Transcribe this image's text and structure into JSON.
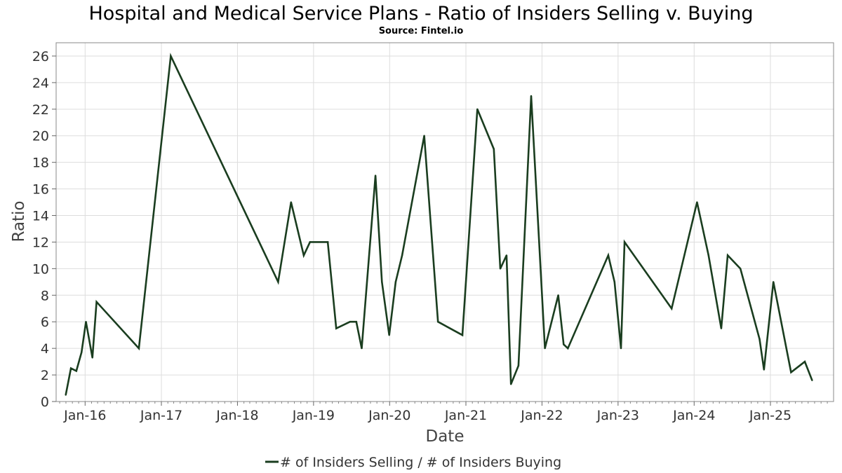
{
  "chart_data": {
    "type": "line",
    "title": "Hospital and Medical Service Plans - Ratio of Insiders Selling v. Buying",
    "subtitle": "Source: Fintel.io",
    "xlabel": "Date",
    "ylabel": "Ratio",
    "ylim": [
      0,
      27
    ],
    "xlim": [
      "2015-08-15",
      "2025-10-31"
    ],
    "yticks": [
      0,
      2,
      4,
      6,
      8,
      10,
      12,
      14,
      16,
      18,
      20,
      22,
      24,
      26
    ],
    "xticks": [
      {
        "label": "Jan-16",
        "date": "2016-01-01"
      },
      {
        "label": "Jan-17",
        "date": "2017-01-01"
      },
      {
        "label": "Jan-18",
        "date": "2018-01-01"
      },
      {
        "label": "Jan-19",
        "date": "2019-01-01"
      },
      {
        "label": "Jan-20",
        "date": "2020-01-01"
      },
      {
        "label": "Jan-21",
        "date": "2021-01-01"
      },
      {
        "label": "Jan-22",
        "date": "2022-01-01"
      },
      {
        "label": "Jan-23",
        "date": "2023-01-01"
      },
      {
        "label": "Jan-24",
        "date": "2024-01-01"
      },
      {
        "label": "Jan-25",
        "date": "2025-01-01"
      }
    ],
    "grid": true,
    "legend_position": "bottom-center",
    "series": [
      {
        "name": "# of Insiders Selling / # of Insiders Buying",
        "color": "#1a3d1f",
        "points": [
          [
            "2015-09-30",
            0.5
          ],
          [
            "2015-10-25",
            2.5
          ],
          [
            "2015-11-20",
            2.3
          ],
          [
            "2015-12-15",
            3.7
          ],
          [
            "2016-01-05",
            6.0
          ],
          [
            "2016-02-05",
            3.3
          ],
          [
            "2016-02-25",
            7.5
          ],
          [
            "2016-09-15",
            4.0
          ],
          [
            "2017-02-15",
            26.0
          ],
          [
            "2018-07-15",
            9.0
          ],
          [
            "2018-09-15",
            15.0
          ],
          [
            "2018-11-15",
            11.0
          ],
          [
            "2018-12-15",
            12.0
          ],
          [
            "2019-03-10",
            12.0
          ],
          [
            "2019-04-20",
            5.5
          ],
          [
            "2019-06-25",
            6.0
          ],
          [
            "2019-07-25",
            6.0
          ],
          [
            "2019-08-20",
            4.0
          ],
          [
            "2019-10-25",
            17.0
          ],
          [
            "2019-11-25",
            9.0
          ],
          [
            "2019-12-30",
            5.0
          ],
          [
            "2020-01-30",
            9.0
          ],
          [
            "2020-03-01",
            11.0
          ],
          [
            "2020-06-15",
            20.0
          ],
          [
            "2020-08-20",
            6.0
          ],
          [
            "2020-12-15",
            5.0
          ],
          [
            "2021-02-25",
            22.0
          ],
          [
            "2021-05-15",
            19.0
          ],
          [
            "2021-06-15",
            10.0
          ],
          [
            "2021-07-15",
            11.0
          ],
          [
            "2021-08-05",
            1.3
          ],
          [
            "2021-09-10",
            2.7
          ],
          [
            "2021-11-10",
            23.0
          ],
          [
            "2022-01-15",
            4.0
          ],
          [
            "2022-03-20",
            8.0
          ],
          [
            "2022-04-15",
            4.3
          ],
          [
            "2022-05-05",
            4.0
          ],
          [
            "2022-11-15",
            11.0
          ],
          [
            "2022-12-15",
            9.0
          ],
          [
            "2023-01-15",
            4.0
          ],
          [
            "2023-02-01",
            12.0
          ],
          [
            "2023-09-15",
            7.0
          ],
          [
            "2024-01-15",
            15.0
          ],
          [
            "2024-03-10",
            11.0
          ],
          [
            "2024-05-10",
            5.5
          ],
          [
            "2024-06-10",
            11.0
          ],
          [
            "2024-08-10",
            10.0
          ],
          [
            "2024-11-10",
            4.7
          ],
          [
            "2024-12-01",
            2.4
          ],
          [
            "2025-01-15",
            9.0
          ],
          [
            "2025-04-10",
            2.2
          ],
          [
            "2025-06-15",
            3.0
          ],
          [
            "2025-07-20",
            1.6
          ]
        ]
      }
    ]
  }
}
